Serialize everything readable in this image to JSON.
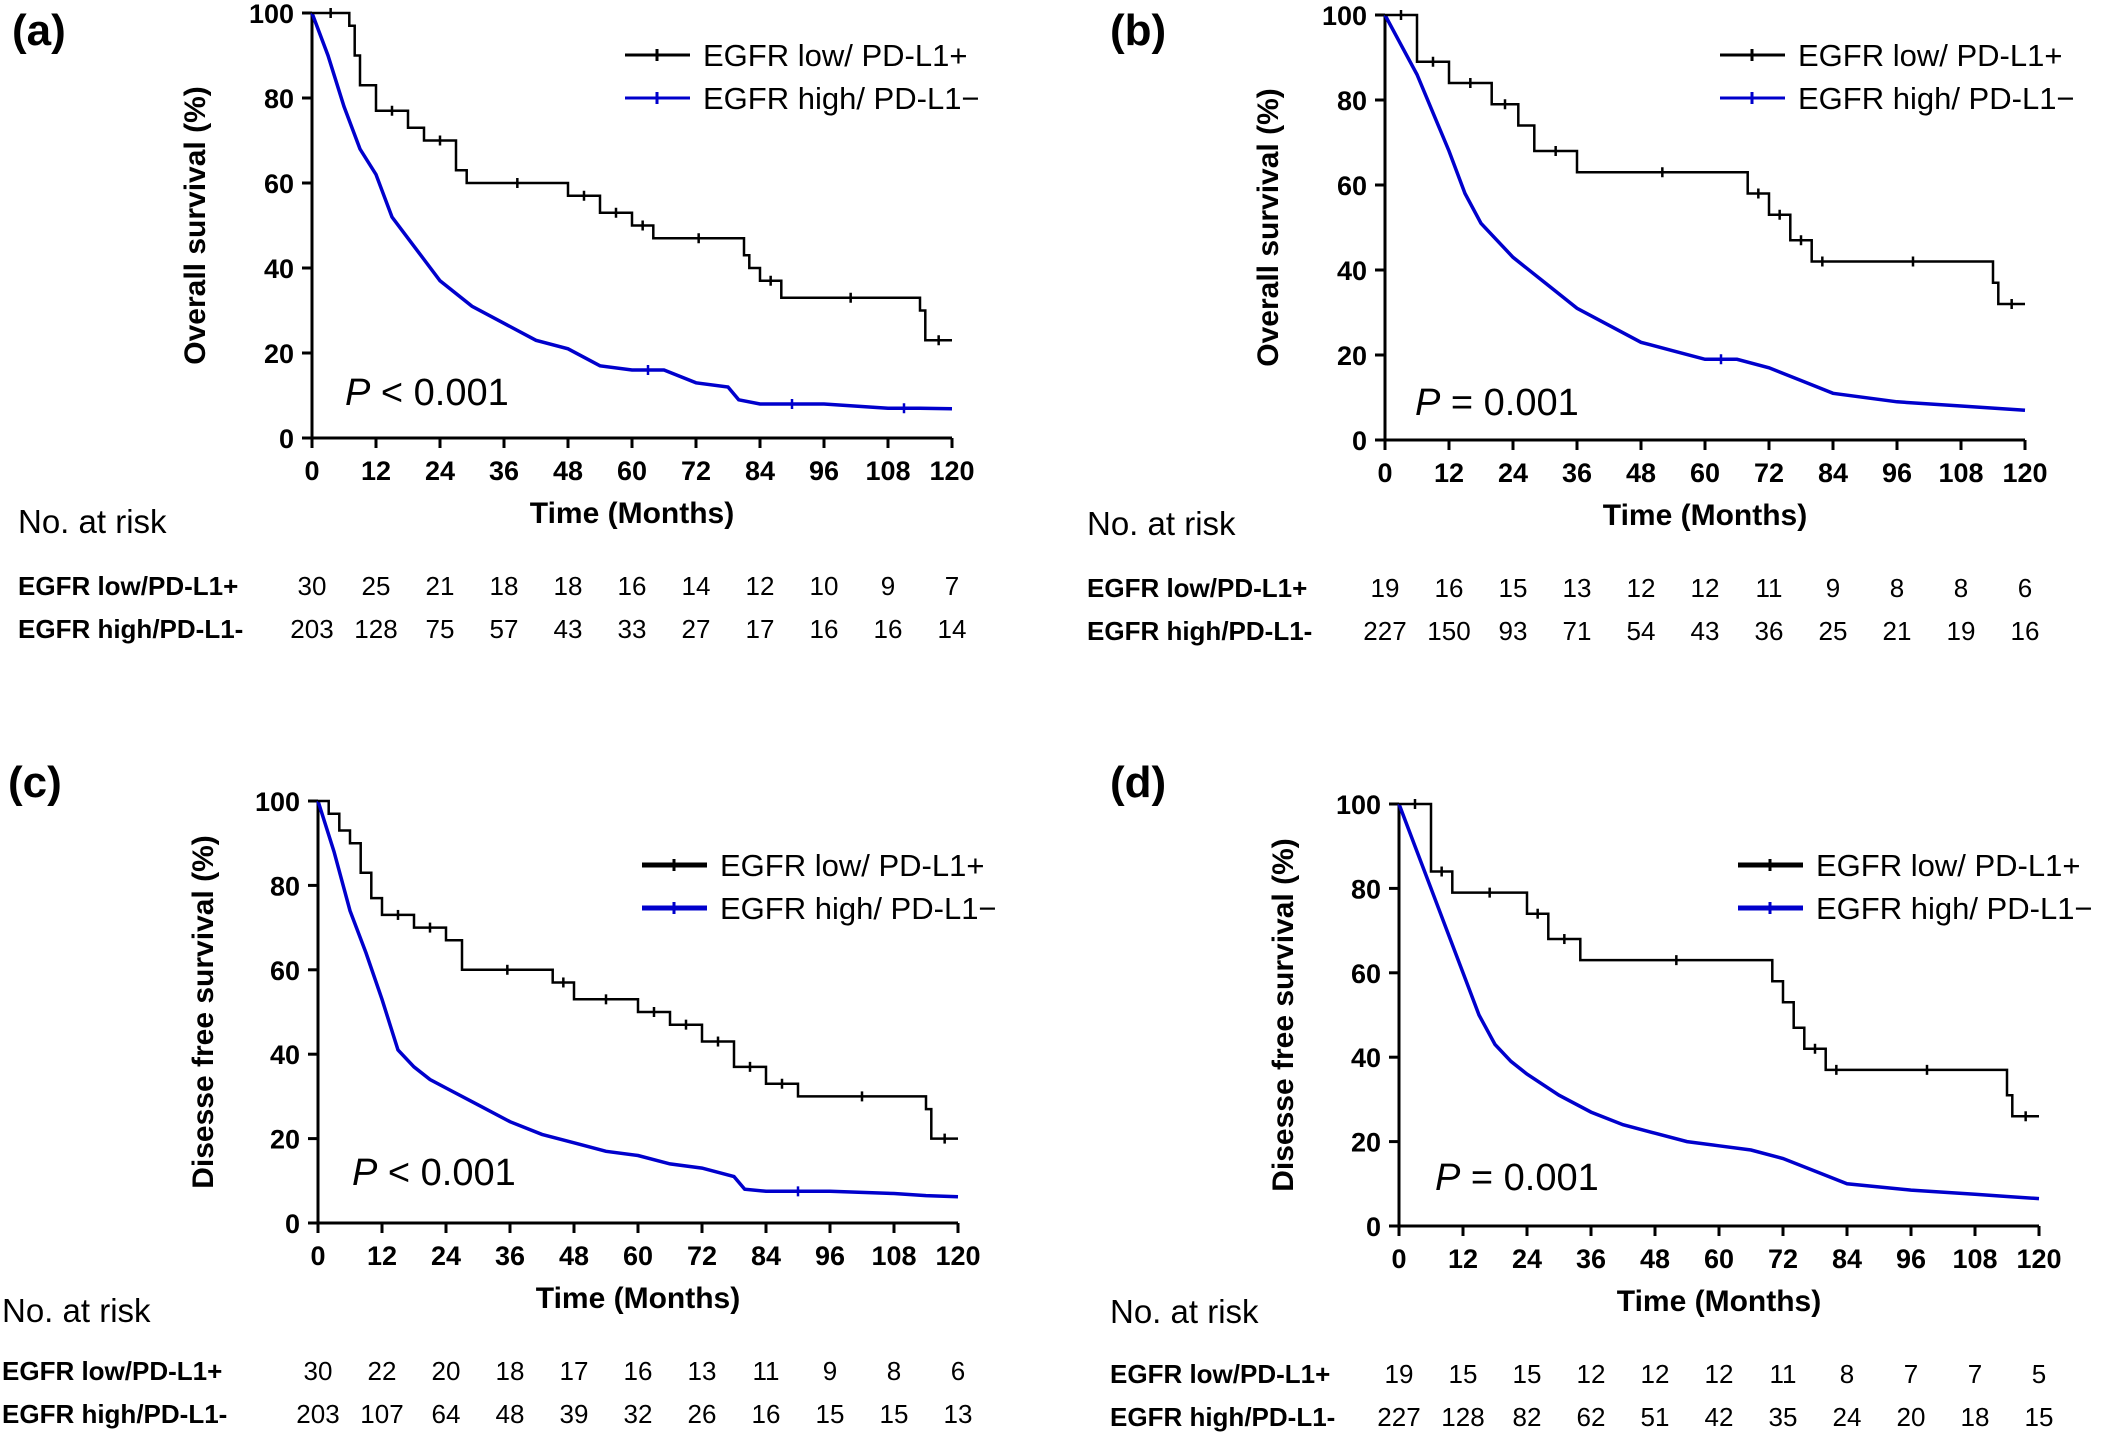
{
  "figure": {
    "colors": {
      "black_series": "#000000",
      "blue_series": "#0000cc",
      "axis": "#000000"
    }
  },
  "chart_data": [
    {
      "panel_label": "(a)",
      "type": "line",
      "ylabel": "Overall survival (%)",
      "xlabel": "Time (Months)",
      "xlim": [
        0,
        120
      ],
      "ylim": [
        0,
        100
      ],
      "x_ticks": [
        0,
        12,
        24,
        36,
        48,
        60,
        72,
        84,
        96,
        108,
        120
      ],
      "y_ticks": [
        0,
        20,
        40,
        60,
        80,
        100
      ],
      "p_prefix": "P",
      "p_value_text": "< 0.001",
      "legend_position": "top-right",
      "series": [
        {
          "name": "EGFR low/ PD-L1+",
          "color": "#000000",
          "x": [
            0,
            7,
            7,
            8,
            8,
            9,
            9,
            12,
            12,
            18,
            18,
            21,
            21,
            27,
            27,
            29,
            29,
            48,
            48,
            54,
            54,
            60,
            60,
            64,
            64,
            81,
            81,
            82,
            82,
            84,
            84,
            88,
            88,
            114,
            114,
            115,
            115,
            120
          ],
          "y": [
            100,
            100,
            97,
            97,
            90,
            90,
            83,
            83,
            77,
            77,
            73,
            73,
            70,
            70,
            63,
            63,
            60,
            60,
            57,
            57,
            53,
            53,
            50,
            50,
            47,
            47,
            43,
            43,
            40,
            40,
            37,
            37,
            33,
            33,
            30,
            30,
            23,
            23
          ]
        },
        {
          "name": "EGFR high/ PD-L1−",
          "color": "#0000cc",
          "x": [
            0,
            3,
            6,
            9,
            12,
            15,
            18,
            21,
            24,
            30,
            36,
            42,
            48,
            54,
            60,
            66,
            72,
            78,
            80,
            84,
            96,
            108,
            114,
            120
          ],
          "y": [
            100,
            90,
            78,
            68,
            62,
            52,
            47,
            42,
            37,
            31,
            27,
            23,
            21,
            17,
            16,
            16,
            13,
            12,
            9,
            8,
            8,
            7,
            7,
            6.9
          ]
        }
      ],
      "risk_table": {
        "header": "No. at risk",
        "rows": [
          {
            "label": "EGFR low/PD-L1+",
            "values": [
              "30",
              "25",
              "21",
              "18",
              "18",
              "16",
              "14",
              "12",
              "10",
              "9",
              "7"
            ]
          },
          {
            "label": "EGFR high/PD-L1-",
            "values": [
              "203",
              "128",
              "75",
              "57",
              "43",
              "33",
              "27",
              "17",
              "16",
              "16",
              "14"
            ]
          }
        ]
      }
    },
    {
      "panel_label": "(b)",
      "type": "line",
      "ylabel": "Overall survival (%)",
      "xlabel": "Time (Months)",
      "xlim": [
        0,
        120
      ],
      "ylim": [
        0,
        100
      ],
      "x_ticks": [
        0,
        12,
        24,
        36,
        48,
        60,
        72,
        84,
        96,
        108,
        120
      ],
      "y_ticks": [
        0,
        20,
        40,
        60,
        80,
        100
      ],
      "p_prefix": "P",
      "p_value_text": "= 0.001",
      "legend_position": "top-right",
      "series": [
        {
          "name": "EGFR low/ PD-L1+",
          "color": "#000000",
          "x": [
            0,
            6,
            6,
            12,
            12,
            20,
            20,
            25,
            25,
            28,
            28,
            36,
            36,
            68,
            68,
            72,
            72,
            76,
            76,
            80,
            80,
            84,
            84,
            114,
            114,
            115,
            115,
            120
          ],
          "y": [
            100,
            100,
            89,
            89,
            84,
            84,
            79,
            79,
            74,
            74,
            68,
            68,
            63,
            63,
            58,
            58,
            53,
            53,
            47,
            47,
            42,
            42,
            42,
            42,
            37,
            37,
            32,
            32
          ]
        },
        {
          "name": "EGFR high/ PD-L1−",
          "color": "#0000cc",
          "x": [
            0,
            3,
            6,
            9,
            12,
            15,
            18,
            21,
            24,
            30,
            36,
            42,
            48,
            54,
            60,
            66,
            72,
            78,
            84,
            96,
            108,
            114,
            120
          ],
          "y": [
            100,
            93,
            86,
            77,
            68,
            58,
            51,
            47,
            43,
            37,
            31,
            27,
            23,
            21,
            19,
            19,
            17,
            14,
            11,
            9,
            8,
            7.5,
            7
          ]
        }
      ],
      "risk_table": {
        "header": "No. at risk",
        "rows": [
          {
            "label": "EGFR low/PD-L1+",
            "values": [
              "19",
              "16",
              "15",
              "13",
              "12",
              "12",
              "11",
              "9",
              "8",
              "8",
              "6"
            ]
          },
          {
            "label": "EGFR high/PD-L1-",
            "values": [
              "227",
              "150",
              "93",
              "71",
              "54",
              "43",
              "36",
              "25",
              "21",
              "19",
              "16"
            ]
          }
        ]
      }
    },
    {
      "panel_label": "(c)",
      "type": "line",
      "ylabel": "Disesse free survival (%)",
      "xlabel": "Time (Months)",
      "xlim": [
        0,
        120
      ],
      "ylim": [
        0,
        100
      ],
      "x_ticks": [
        0,
        12,
        24,
        36,
        48,
        60,
        72,
        84,
        96,
        108,
        120
      ],
      "y_ticks": [
        0,
        20,
        40,
        60,
        80,
        100
      ],
      "p_prefix": "P",
      "p_value_text": "< 0.001",
      "legend_position": "top-right",
      "series": [
        {
          "name": "EGFR low/ PD-L1+",
          "color": "#000000",
          "x": [
            0,
            2,
            2,
            4,
            4,
            6,
            6,
            8,
            8,
            10,
            10,
            12,
            12,
            18,
            18,
            24,
            24,
            27,
            27,
            44,
            44,
            48,
            48,
            60,
            60,
            66,
            66,
            72,
            72,
            78,
            78,
            84,
            84,
            90,
            90,
            114,
            114,
            115,
            115,
            120
          ],
          "y": [
            100,
            100,
            97,
            97,
            93,
            93,
            90,
            90,
            83,
            83,
            77,
            77,
            73,
            73,
            70,
            70,
            67,
            67,
            60,
            60,
            57,
            57,
            53,
            53,
            50,
            50,
            47,
            47,
            43,
            43,
            37,
            37,
            33,
            33,
            30,
            30,
            27,
            27,
            20,
            20
          ]
        },
        {
          "name": "EGFR high/ PD-L1−",
          "color": "#0000cc",
          "x": [
            0,
            3,
            6,
            9,
            12,
            15,
            18,
            21,
            24,
            30,
            36,
            42,
            48,
            54,
            60,
            66,
            72,
            78,
            80,
            84,
            96,
            108,
            114,
            120
          ],
          "y": [
            100,
            88,
            74,
            64,
            53,
            41,
            37,
            34,
            32,
            28,
            24,
            21,
            19,
            17,
            16,
            14,
            13,
            11,
            8,
            7.5,
            7.5,
            7,
            6.5,
            6.2
          ]
        }
      ],
      "risk_table": {
        "header": "No. at risk",
        "rows": [
          {
            "label": "EGFR low/PD-L1+",
            "values": [
              "30",
              "22",
              "20",
              "18",
              "17",
              "16",
              "13",
              "11",
              "9",
              "8",
              "6"
            ]
          },
          {
            "label": "EGFR high/PD-L1-",
            "values": [
              "203",
              "107",
              "64",
              "48",
              "39",
              "32",
              "26",
              "16",
              "15",
              "15",
              "13"
            ]
          }
        ]
      }
    },
    {
      "panel_label": "(d)",
      "type": "line",
      "ylabel": "Disesse free survival (%)",
      "xlabel": "Time (Months)",
      "xlim": [
        0,
        120
      ],
      "ylim": [
        0,
        100
      ],
      "x_ticks": [
        0,
        12,
        24,
        36,
        48,
        60,
        72,
        84,
        96,
        108,
        120
      ],
      "y_ticks": [
        0,
        20,
        40,
        60,
        80,
        100
      ],
      "p_prefix": "P",
      "p_value_text": "= 0.001",
      "legend_position": "top-right",
      "series": [
        {
          "name": "EGFR low/ PD-L1+",
          "color": "#000000",
          "x": [
            0,
            6,
            6,
            10,
            10,
            24,
            24,
            28,
            28,
            34,
            34,
            70,
            70,
            72,
            72,
            74,
            74,
            76,
            76,
            80,
            80,
            84,
            84,
            114,
            114,
            115,
            115,
            120
          ],
          "y": [
            100,
            100,
            84,
            84,
            79,
            79,
            74,
            74,
            68,
            68,
            63,
            63,
            58,
            58,
            53,
            53,
            47,
            47,
            42,
            42,
            37,
            37,
            37,
            37,
            31,
            31,
            26,
            26
          ]
        },
        {
          "name": "EGFR high/ PD-L1−",
          "color": "#0000cc",
          "x": [
            0,
            3,
            6,
            9,
            12,
            15,
            18,
            21,
            24,
            30,
            36,
            42,
            48,
            54,
            60,
            66,
            72,
            78,
            84,
            96,
            108,
            114,
            120
          ],
          "y": [
            100,
            90,
            80,
            70,
            60,
            50,
            43,
            39,
            36,
            31,
            27,
            24,
            22,
            20,
            19,
            18,
            16,
            13,
            10,
            8.5,
            7.5,
            7,
            6.5
          ]
        }
      ],
      "risk_table": {
        "header": "No. at risk",
        "rows": [
          {
            "label": "EGFR low/PD-L1+",
            "values": [
              "19",
              "15",
              "15",
              "12",
              "12",
              "12",
              "11",
              "8",
              "7",
              "7",
              "5"
            ]
          },
          {
            "label": "EGFR high/PD-L1-",
            "values": [
              "227",
              "128",
              "82",
              "62",
              "51",
              "42",
              "35",
              "24",
              "20",
              "18",
              "15"
            ]
          }
        ]
      }
    }
  ]
}
